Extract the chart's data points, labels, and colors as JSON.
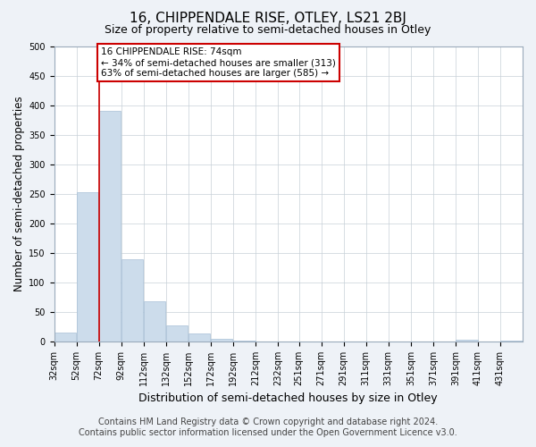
{
  "title": "16, CHIPPENDALE RISE, OTLEY, LS21 2BJ",
  "subtitle": "Size of property relative to semi-detached houses in Otley",
  "xlabel": "Distribution of semi-detached houses by size in Otley",
  "ylabel": "Number of semi-detached properties",
  "footer_line1": "Contains HM Land Registry data © Crown copyright and database right 2024.",
  "footer_line2": "Contains public sector information licensed under the Open Government Licence v3.0.",
  "annotation_line1": "16 CHIPPENDALE RISE: 74sqm",
  "annotation_line2": "← 34% of semi-detached houses are smaller (313)",
  "annotation_line3": "63% of semi-detached houses are larger (585) →",
  "bar_step": 20,
  "bin_left_edges": [
    32,
    52,
    72,
    92,
    112,
    132,
    152,
    172,
    192,
    212,
    232,
    251,
    271,
    291,
    311,
    331,
    351,
    371,
    391,
    411,
    431
  ],
  "bar_values": [
    15,
    253,
    390,
    140,
    68,
    28,
    13,
    5,
    2,
    0,
    0,
    0,
    0,
    0,
    0,
    0,
    0,
    0,
    3,
    0,
    2
  ],
  "bar_color": "#ccdceb",
  "bar_edge_color": "#a8c0d6",
  "vline_color": "#cc0000",
  "vline_x": 72,
  "ylim": [
    0,
    500
  ],
  "yticks": [
    0,
    50,
    100,
    150,
    200,
    250,
    300,
    350,
    400,
    450,
    500
  ],
  "background_color": "#eef2f7",
  "plot_background": "#ffffff",
  "grid_color": "#c8d0d8",
  "title_fontsize": 11,
  "subtitle_fontsize": 9,
  "tick_label_fontsize": 7,
  "ylabel_fontsize": 8.5,
  "xlabel_fontsize": 9,
  "annotation_fontsize": 7.5,
  "footer_fontsize": 7
}
